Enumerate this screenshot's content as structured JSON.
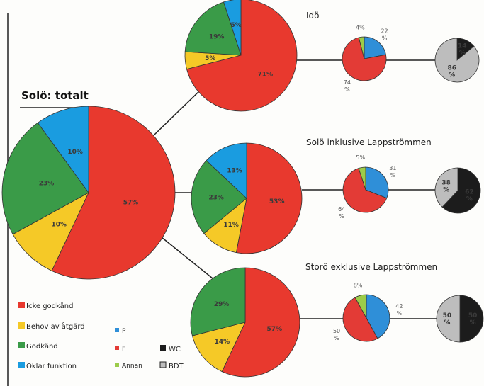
{
  "colors": {
    "icke_godkand": "#e8392e",
    "behov_av_atgard": "#f5c927",
    "godkand": "#3a9b48",
    "oklar_funktion": "#1a9ce0",
    "P": "#2f8fd8",
    "F": "#e33b36",
    "Annan": "#9ccc4a",
    "WC": "#1c1c1c",
    "BDT": "#bdbdbd"
  },
  "legend": {
    "status": [
      {
        "key": "icke_godkand",
        "label": "Icke godkänd"
      },
      {
        "key": "behov_av_atgard",
        "label": "Behov av åtgärd"
      },
      {
        "key": "godkand",
        "label": "Godkänd"
      },
      {
        "key": "oklar_funktion",
        "label": "Oklar funktion"
      }
    ],
    "type": [
      {
        "key": "P",
        "label": "P"
      },
      {
        "key": "F",
        "label": "F"
      },
      {
        "key": "Annan",
        "label": "Annan"
      }
    ],
    "toilet": [
      {
        "key": "WC",
        "label": "WC"
      },
      {
        "key": "BDT",
        "label": "BDT"
      }
    ]
  },
  "chart_data": [
    {
      "type": "pie",
      "id": "total",
      "title": "Solö: totalt",
      "slices": [
        {
          "category": "icke_godkand",
          "value": 57,
          "label": "57%"
        },
        {
          "category": "behov_av_atgard",
          "value": 10,
          "label": "10%"
        },
        {
          "category": "godkand",
          "value": 23,
          "label": "23%"
        },
        {
          "category": "oklar_funktion",
          "value": 10,
          "label": "10%"
        }
      ]
    },
    {
      "type": "pie",
      "id": "ido-status",
      "title": "Idö",
      "slices": [
        {
          "category": "icke_godkand",
          "value": 71,
          "label": "71%"
        },
        {
          "category": "behov_av_atgard",
          "value": 5,
          "label": "5%"
        },
        {
          "category": "godkand",
          "value": 19,
          "label": "19%"
        },
        {
          "category": "oklar_funktion",
          "value": 5,
          "label": "5%"
        }
      ]
    },
    {
      "type": "pie",
      "id": "ido-type",
      "slices": [
        {
          "category": "P",
          "value": 22,
          "label": "22\n%"
        },
        {
          "category": "F",
          "value": 74,
          "label": "74\n%"
        },
        {
          "category": "Annan",
          "value": 4,
          "label": "4%"
        }
      ]
    },
    {
      "type": "pie",
      "id": "ido-toilet",
      "slices": [
        {
          "category": "WC",
          "value": 14,
          "label": "14\n%"
        },
        {
          "category": "BDT",
          "value": 86,
          "label": "86\n%"
        }
      ]
    },
    {
      "type": "pie",
      "id": "inkl-status",
      "title": "Solö inklusive Lappströmmen",
      "slices": [
        {
          "category": "icke_godkand",
          "value": 53,
          "label": "53%"
        },
        {
          "category": "behov_av_atgard",
          "value": 11,
          "label": "11%"
        },
        {
          "category": "godkand",
          "value": 23,
          "label": "23%"
        },
        {
          "category": "oklar_funktion",
          "value": 13,
          "label": "13%"
        }
      ]
    },
    {
      "type": "pie",
      "id": "inkl-type",
      "slices": [
        {
          "category": "P",
          "value": 31,
          "label": "31\n%"
        },
        {
          "category": "F",
          "value": 64,
          "label": "64\n%"
        },
        {
          "category": "Annan",
          "value": 5,
          "label": "5%"
        }
      ]
    },
    {
      "type": "pie",
      "id": "inkl-toilet",
      "slices": [
        {
          "category": "WC",
          "value": 62,
          "label": "62\n%"
        },
        {
          "category": "BDT",
          "value": 38,
          "label": "38\n%"
        }
      ]
    },
    {
      "type": "pie",
      "id": "exkl-status",
      "title": "Storö exklusive Lappströmmen",
      "slices": [
        {
          "category": "icke_godkand",
          "value": 57,
          "label": "57%"
        },
        {
          "category": "behov_av_atgard",
          "value": 14,
          "label": "14%"
        },
        {
          "category": "godkand",
          "value": 29,
          "label": "29%"
        }
      ]
    },
    {
      "type": "pie",
      "id": "exkl-type",
      "slices": [
        {
          "category": "P",
          "value": 42,
          "label": "42\n%"
        },
        {
          "category": "F",
          "value": 50,
          "label": "50\n%"
        },
        {
          "category": "Annan",
          "value": 8,
          "label": "8%"
        }
      ]
    },
    {
      "type": "pie",
      "id": "exkl-toilet",
      "slices": [
        {
          "category": "WC",
          "value": 50,
          "label": "50\n%"
        },
        {
          "category": "BDT",
          "value": 50,
          "label": "50\n%"
        }
      ]
    }
  ]
}
